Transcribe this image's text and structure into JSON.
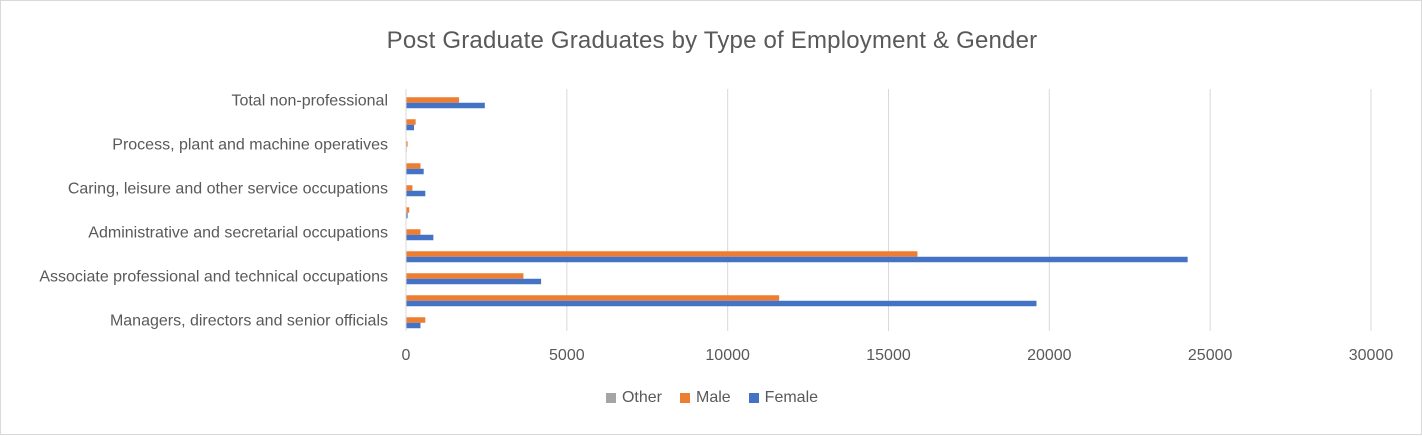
{
  "chart_data": {
    "type": "bar",
    "orientation": "horizontal",
    "title": "Post Graduate Graduates by Type of Employment & Gender",
    "xlabel": "",
    "ylabel": "",
    "xlim": [
      0,
      30000
    ],
    "x_ticks": [
      0,
      5000,
      10000,
      15000,
      20000,
      25000,
      30000
    ],
    "grid": "vertical",
    "legend_position": "bottom",
    "categories_bottom_to_top": [
      "Managers, directors and senior officials",
      "",
      "Associate professional and technical occupations",
      "",
      "Administrative and secretarial occupations",
      "",
      "Caring, leisure and other service occupations",
      "",
      "Process, plant and machine operatives",
      "",
      "Total non-professional"
    ],
    "series": [
      {
        "name": "Female",
        "color": "#4472c4",
        "values": [
          450,
          19600,
          4200,
          24300,
          850,
          50,
          600,
          550,
          20,
          250,
          2450
        ]
      },
      {
        "name": "Male",
        "color": "#ed7d31",
        "values": [
          600,
          11600,
          3650,
          15900,
          450,
          100,
          200,
          450,
          50,
          300,
          1650
        ]
      },
      {
        "name": "Other",
        "color": "#a5a5a5",
        "values": [
          0,
          0,
          0,
          0,
          0,
          0,
          0,
          0,
          0,
          0,
          0
        ]
      }
    ],
    "legend_order": [
      "Other",
      "Male",
      "Female"
    ]
  }
}
